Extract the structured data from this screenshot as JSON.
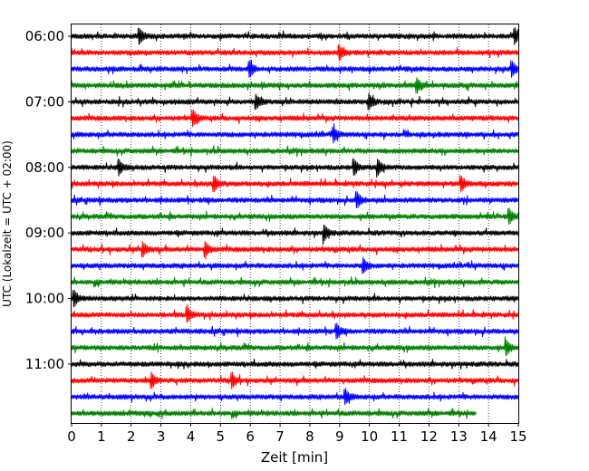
{
  "chart_data": {
    "type": "line",
    "xlabel": "Zeit  [min]",
    "ylabel": "UTC (Lokalzeit = UTC + 02:00)",
    "xlim": [
      0,
      15
    ],
    "x_ticks": [
      0,
      1,
      2,
      3,
      4,
      5,
      6,
      7,
      8,
      9,
      10,
      11,
      12,
      13,
      14,
      15
    ],
    "x_grid": "vertical dotted",
    "y_tick_labels": [
      "06:00",
      "07:00",
      "08:00",
      "09:00",
      "10:00",
      "11:00"
    ],
    "traces_per_hour": 4,
    "minutes_per_trace": 15,
    "color_cycle": [
      "#000000",
      "#ff0000",
      "#0000ff",
      "#008000"
    ],
    "traces": [
      {
        "start": "06:00",
        "events": [
          2.3,
          14.9
        ]
      },
      {
        "start": "06:15",
        "events": [
          9.0
        ]
      },
      {
        "start": "06:30",
        "events": [
          6.0,
          14.8
        ]
      },
      {
        "start": "06:45",
        "events": [
          11.6
        ]
      },
      {
        "start": "07:00",
        "events": [
          6.2,
          10.0
        ]
      },
      {
        "start": "07:15",
        "events": [
          4.1
        ]
      },
      {
        "start": "07:30",
        "events": [
          8.8
        ]
      },
      {
        "start": "07:45",
        "events": []
      },
      {
        "start": "08:00",
        "events": [
          1.6,
          9.5,
          10.3
        ]
      },
      {
        "start": "08:15",
        "events": [
          4.8,
          13.1
        ]
      },
      {
        "start": "08:30",
        "events": [
          9.6
        ]
      },
      {
        "start": "08:45",
        "events": [
          14.7
        ]
      },
      {
        "start": "09:00",
        "events": [
          8.5
        ]
      },
      {
        "start": "09:15",
        "events": [
          2.4,
          4.5
        ]
      },
      {
        "start": "09:30",
        "events": [
          9.8
        ]
      },
      {
        "start": "09:45",
        "events": []
      },
      {
        "start": "10:00",
        "events": [
          0.1
        ]
      },
      {
        "start": "10:15",
        "events": [
          3.9
        ]
      },
      {
        "start": "10:30",
        "events": [
          8.9
        ]
      },
      {
        "start": "10:45",
        "events": [
          14.6
        ]
      },
      {
        "start": "11:00",
        "events": []
      },
      {
        "start": "11:15",
        "events": [
          2.7,
          5.4
        ]
      },
      {
        "start": "11:30",
        "events": [
          9.2
        ]
      },
      {
        "start": "11:45",
        "events": [],
        "end": 13.6
      }
    ]
  }
}
